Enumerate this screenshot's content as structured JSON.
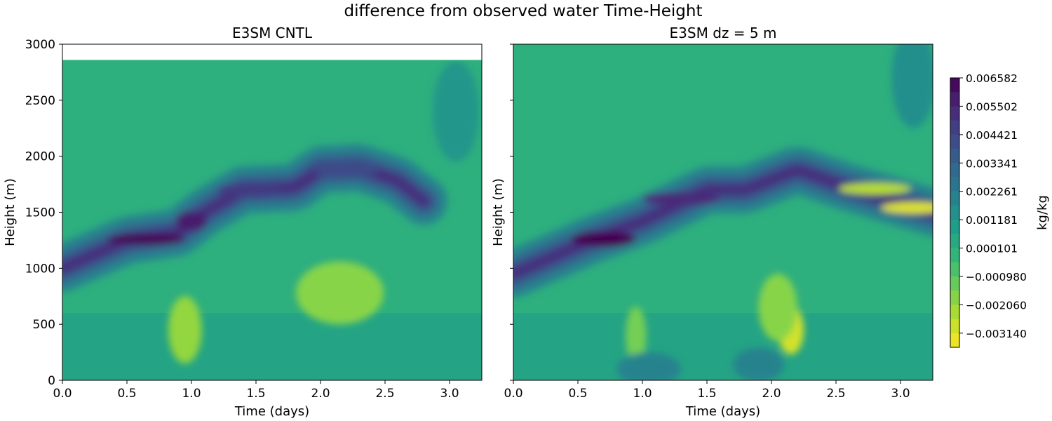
{
  "figure": {
    "title": "difference from observed water Time-Height"
  },
  "chart_data": {
    "type": "heatmap",
    "panels": [
      {
        "id": "cntl",
        "title": "E3SM CNTL",
        "xlabel": "Time (days)",
        "ylabel": "Height (m)",
        "xlim": [
          0,
          3.25
        ],
        "ylim": [
          0,
          3000
        ],
        "data_top": 2860,
        "x_ticks": [
          "0.0",
          "0.5",
          "1.0",
          "1.5",
          "2.0",
          "2.5",
          "3.0"
        ],
        "y_ticks": [
          "0",
          "500",
          "1000",
          "1500",
          "2000",
          "2500",
          "3000"
        ],
        "band_points": [
          [
            0,
            1000
          ],
          [
            0.5,
            1250
          ],
          [
            0.9,
            1320
          ],
          [
            1.1,
            1500
          ],
          [
            1.4,
            1700
          ],
          [
            1.8,
            1720
          ],
          [
            2.0,
            1880
          ],
          [
            2.3,
            1900
          ],
          [
            2.6,
            1780
          ],
          [
            2.8,
            1600
          ]
        ],
        "features": [
          {
            "value": 0.0064,
            "x": 0.65,
            "y": 1260,
            "rx": 0.3,
            "ry": 55
          },
          {
            "value": 0.0058,
            "x": 1.0,
            "y": 1420,
            "rx": 0.12,
            "ry": 90
          },
          {
            "value": 0.0048,
            "x": 1.45,
            "y": 1700,
            "rx": 0.25,
            "ry": 60
          },
          {
            "value": 0.0042,
            "x": 2.2,
            "y": 1880,
            "rx": 0.25,
            "ry": 70
          },
          {
            "value": -0.0028,
            "x": 2.2,
            "y": 790,
            "rx": 0.18,
            "ry": 130
          },
          {
            "value": -0.0018,
            "x": 2.15,
            "y": 780,
            "rx": 0.34,
            "ry": 280
          },
          {
            "value": -0.002,
            "x": 0.95,
            "y": 450,
            "rx": 0.13,
            "ry": 300
          },
          {
            "value": 0.0012,
            "x": 3.05,
            "y": 2400,
            "rx": 0.18,
            "ry": 450
          }
        ]
      },
      {
        "id": "dz5",
        "title": "E3SM dz = 5 m",
        "xlabel": "Time (days)",
        "ylabel": "Height (m)",
        "xlim": [
          0,
          3.25
        ],
        "ylim": [
          0,
          3000
        ],
        "data_top": 3000,
        "x_ticks": [
          "0.0",
          "0.5",
          "1.0",
          "1.5",
          "2.0",
          "2.5",
          "3.0"
        ],
        "y_ticks": [
          "0",
          "500",
          "1000",
          "1500",
          "2000",
          "2500",
          "3000"
        ],
        "band_points": [
          [
            0,
            950
          ],
          [
            0.6,
            1250
          ],
          [
            1.0,
            1420
          ],
          [
            1.5,
            1700
          ],
          [
            1.8,
            1700
          ],
          [
            2.2,
            1880
          ],
          [
            2.6,
            1720
          ],
          [
            3.25,
            1500
          ]
        ],
        "features": [
          {
            "value": 0.0066,
            "x": 0.7,
            "y": 1260,
            "rx": 0.25,
            "ry": 70
          },
          {
            "value": 0.0054,
            "x": 1.3,
            "y": 1620,
            "rx": 0.3,
            "ry": 60
          },
          {
            "value": -0.0032,
            "x": 3.1,
            "y": 1540,
            "rx": 0.25,
            "ry": 50
          },
          {
            "value": -0.0026,
            "x": 2.8,
            "y": 1710,
            "rx": 0.28,
            "ry": 50
          },
          {
            "value": -0.003,
            "x": 2.15,
            "y": 450,
            "rx": 0.1,
            "ry": 220
          },
          {
            "value": -0.0018,
            "x": 2.05,
            "y": 650,
            "rx": 0.15,
            "ry": 300
          },
          {
            "value": -0.0015,
            "x": 0.95,
            "y": 400,
            "rx": 0.08,
            "ry": 260
          },
          {
            "value": 0.0015,
            "x": 3.1,
            "y": 2700,
            "rx": 0.17,
            "ry": 450
          },
          {
            "value": 0.002,
            "x": 1.05,
            "y": 100,
            "rx": 0.25,
            "ry": 150
          },
          {
            "value": 0.002,
            "x": 1.9,
            "y": 140,
            "rx": 0.2,
            "ry": 150
          }
        ]
      }
    ],
    "colorbar": {
      "label": "kg/kg",
      "min": -0.00368,
      "max": 0.006582,
      "tick_values": [
        0.006582,
        0.005502,
        0.004421,
        0.003341,
        0.002261,
        0.001181,
        0.000101,
        -0.00098,
        -0.00206,
        -0.00314
      ],
      "tick_labels": [
        "0.006582",
        "0.005502",
        "0.004421",
        "0.003341",
        "0.002261",
        "0.001181",
        "0.000101",
        "−0.000980",
        "−0.002060",
        "−0.003140"
      ],
      "colors": [
        "#440154",
        "#482878",
        "#3e4989",
        "#31688e",
        "#26828e",
        "#1f9e89",
        "#35b779",
        "#6ece58",
        "#b5de2b",
        "#fde725"
      ]
    }
  }
}
